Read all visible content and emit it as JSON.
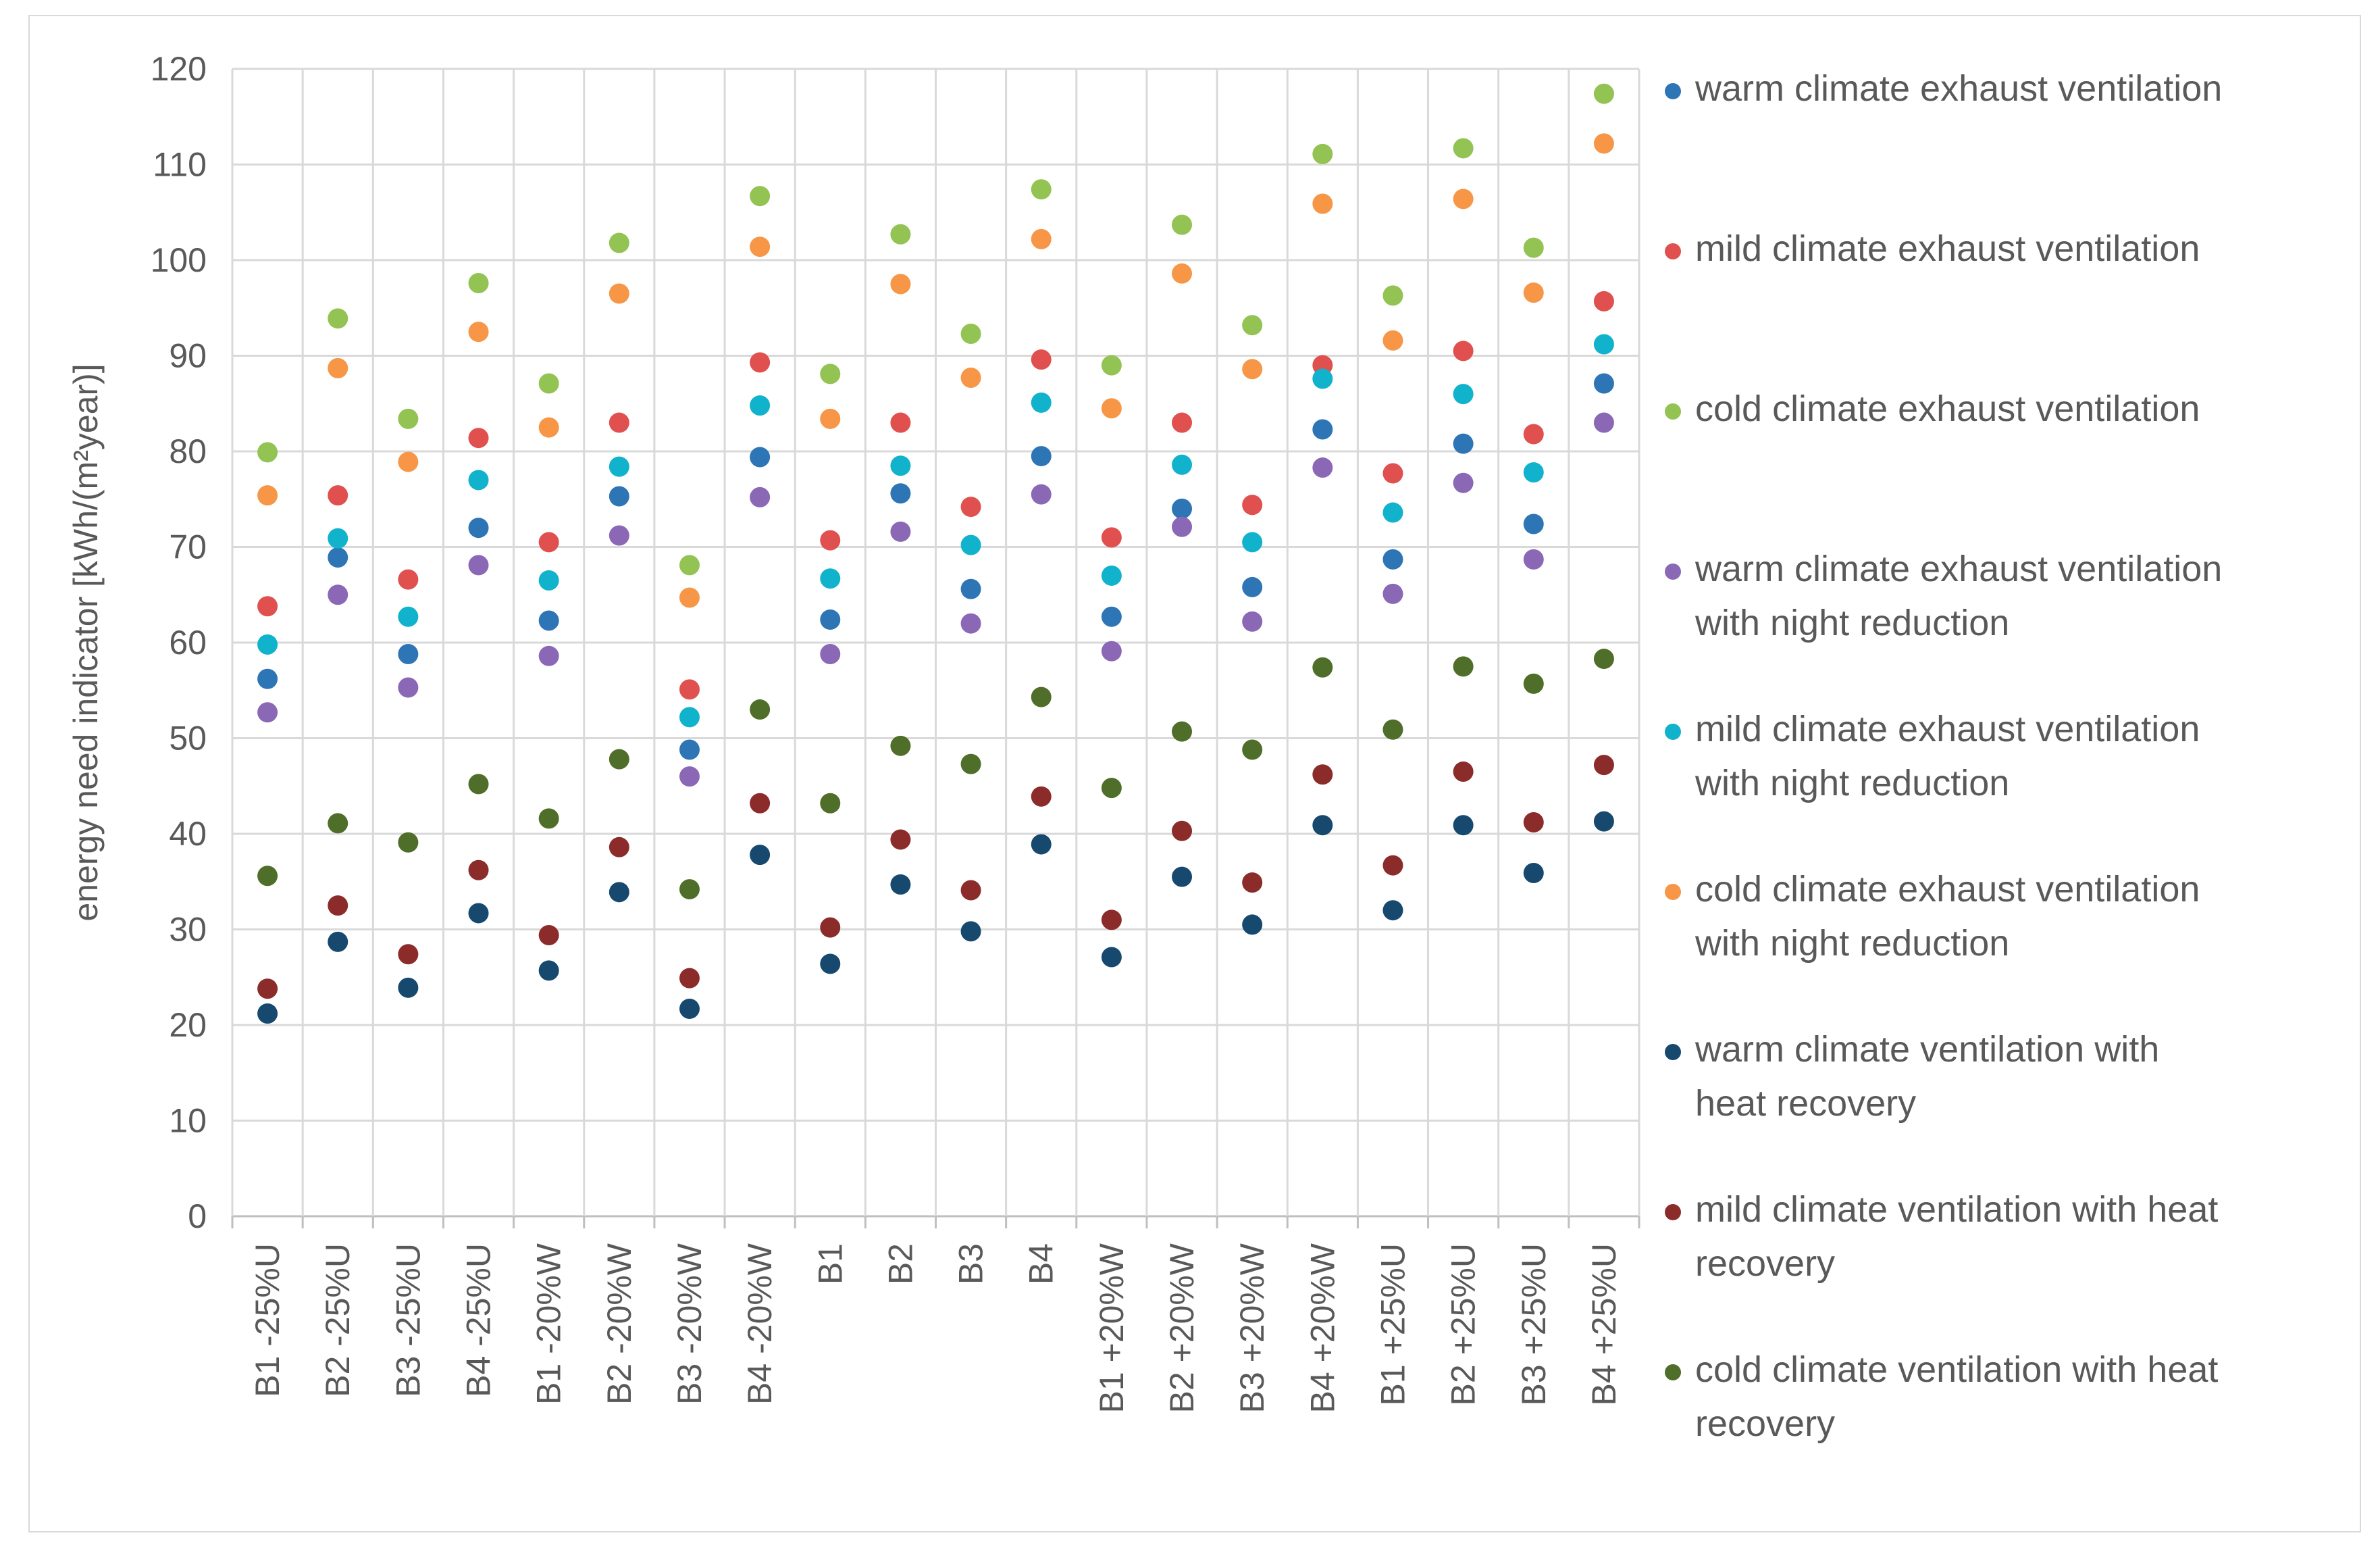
{
  "chart_data": {
    "type": "scatter",
    "title": "",
    "xlabel": "",
    "ylabel": "energy need indicator [kWh/(m²year)]",
    "ylim": [
      0,
      120
    ],
    "ytick_step": 10,
    "grid": true,
    "legend_position": "right",
    "categories": [
      "B1 -25%U",
      "B2 -25%U",
      "B3 -25%U",
      "B4 -25%U",
      "B1 -20%W",
      "B2 -20%W",
      "B3 -20%W",
      "B4 -20%W",
      "B1",
      "B2",
      "B3",
      "B4",
      "B1 +20%W",
      "B2 +20%W",
      "B3 +20%W",
      "B4 +20%W",
      "B1 +25%U",
      "B2 +25%U",
      "B3 +25%U",
      "B4 +25%U"
    ],
    "series": [
      {
        "name": "warm climate exhaust ventilation",
        "legend_lines": [
          "warm climate exhaust ventilation"
        ],
        "color": "#2e75b6",
        "values": [
          56.2,
          68.9,
          58.8,
          72.0,
          62.3,
          75.3,
          48.8,
          79.4,
          62.4,
          75.6,
          65.6,
          79.5,
          62.7,
          74.0,
          65.8,
          82.3,
          68.7,
          80.8,
          72.4,
          87.1
        ]
      },
      {
        "name": "mild climate exhaust ventilation",
        "legend_lines": [
          "mild climate exhaust ventilation"
        ],
        "color": "#e0504f",
        "values": [
          63.8,
          75.4,
          66.6,
          81.4,
          70.5,
          83.0,
          55.1,
          89.3,
          70.7,
          83.0,
          74.2,
          89.6,
          71.0,
          83.0,
          74.4,
          89.0,
          77.7,
          90.5,
          81.8,
          95.7
        ]
      },
      {
        "name": "cold climate exhaust ventilation",
        "legend_lines": [
          "cold climate exhaust ventilation"
        ],
        "color": "#92c353",
        "values": [
          79.9,
          93.9,
          83.4,
          97.6,
          87.1,
          101.8,
          68.1,
          106.7,
          88.1,
          102.7,
          92.3,
          107.4,
          89.0,
          103.7,
          93.2,
          111.1,
          96.3,
          111.7,
          101.3,
          117.4
        ]
      },
      {
        "name": "warm climate exhaust ventilation with night reduction",
        "legend_lines": [
          "warm climate exhaust ventilation",
          "with night reduction"
        ],
        "color": "#8b68b5",
        "values": [
          52.7,
          65.0,
          55.3,
          68.1,
          58.6,
          71.2,
          46.0,
          75.2,
          58.8,
          71.6,
          62.0,
          75.5,
          59.1,
          72.1,
          62.2,
          78.3,
          65.1,
          76.7,
          68.7,
          83.0
        ]
      },
      {
        "name": "mild climate exhaust ventilation with night reduction",
        "legend_lines": [
          "mild climate exhaust ventilation",
          "with night reduction"
        ],
        "color": "#10b2cc",
        "values": [
          59.8,
          70.9,
          62.7,
          77.0,
          66.5,
          78.4,
          52.2,
          84.8,
          66.7,
          78.5,
          70.2,
          85.1,
          67.0,
          78.6,
          70.5,
          87.6,
          73.6,
          86.0,
          77.8,
          91.2
        ]
      },
      {
        "name": "cold climate exhaust ventilation with night reduction",
        "legend_lines": [
          "cold climate exhaust ventilation",
          "with night reduction"
        ],
        "color": "#f79646",
        "values": [
          75.4,
          88.7,
          78.9,
          92.5,
          82.5,
          96.5,
          64.7,
          101.4,
          83.4,
          97.5,
          87.7,
          102.2,
          84.5,
          98.6,
          88.6,
          105.9,
          91.6,
          106.4,
          96.6,
          112.2
        ]
      },
      {
        "name": "warm climate ventilation with heat recovery",
        "legend_lines": [
          "warm climate ventilation with",
          "heat recovery"
        ],
        "color": "#17496f",
        "values": [
          21.2,
          28.7,
          23.9,
          31.7,
          25.7,
          33.9,
          21.7,
          37.8,
          26.4,
          34.7,
          29.8,
          38.9,
          27.1,
          35.5,
          30.5,
          40.9,
          32.0,
          40.9,
          35.9,
          41.3
        ]
      },
      {
        "name": "mild climate ventilation with heat recovery",
        "legend_lines": [
          "mild climate ventilation with heat",
          "recovery"
        ],
        "color": "#8b2c2a",
        "values": [
          23.8,
          32.5,
          27.4,
          36.2,
          29.4,
          38.6,
          24.9,
          43.2,
          30.2,
          39.4,
          34.1,
          43.9,
          31.0,
          40.3,
          34.9,
          46.2,
          36.7,
          46.5,
          41.2,
          47.2
        ]
      },
      {
        "name": "cold climate ventilation with heat recovery",
        "legend_lines": [
          "cold climate ventilation with heat",
          "recovery"
        ],
        "color": "#4f6e29",
        "values": [
          35.6,
          41.1,
          39.1,
          45.2,
          41.6,
          47.8,
          34.2,
          53.0,
          43.2,
          49.2,
          47.3,
          54.3,
          44.8,
          50.7,
          48.8,
          57.4,
          50.9,
          57.5,
          55.7,
          58.3
        ]
      }
    ]
  }
}
